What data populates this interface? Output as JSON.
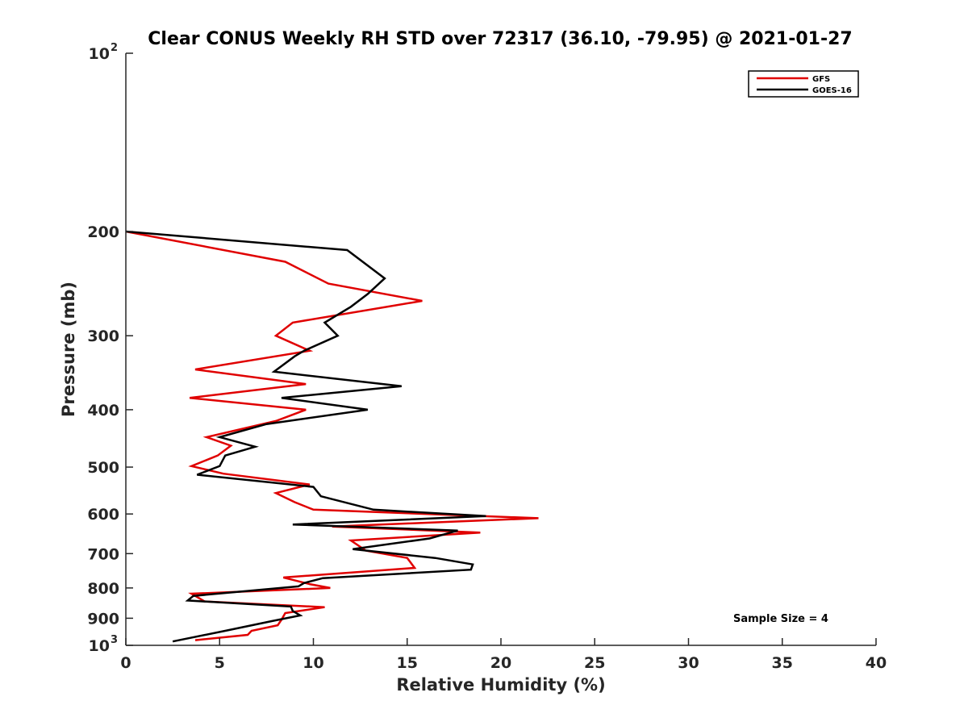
{
  "chart_data": {
    "type": "line",
    "title": "Clear CONUS Weekly RH STD over 72317 (36.10, -79.95) @ 2021-01-27",
    "xlabel": "Relative Humidity (%)",
    "ylabel": "Pressure (mb)",
    "xlim": [
      0,
      40
    ],
    "ylim": [
      100,
      1000
    ],
    "y_scale": "log",
    "y_reversed": true,
    "grid": false,
    "x_ticks": [
      0,
      5,
      10,
      15,
      20,
      25,
      30,
      35,
      40
    ],
    "y_ticks": [
      {
        "value": 100,
        "base": "10",
        "exp": "2"
      },
      {
        "value": 200,
        "label": "200"
      },
      {
        "value": 300,
        "label": "300"
      },
      {
        "value": 400,
        "label": "400"
      },
      {
        "value": 500,
        "label": "500"
      },
      {
        "value": 600,
        "label": "600"
      },
      {
        "value": 700,
        "label": "700"
      },
      {
        "value": 800,
        "label": "800"
      },
      {
        "value": 900,
        "label": "900"
      },
      {
        "value": 1000,
        "base": "10",
        "exp": "3"
      }
    ],
    "legend_position": "top-right",
    "annotation": "Sample Size = 4",
    "series": [
      {
        "name": "GFS",
        "color": "#e00000",
        "points": [
          [
            0.0,
            200
          ],
          [
            8.5,
            225
          ],
          [
            10.8,
            245
          ],
          [
            15.8,
            262
          ],
          [
            8.9,
            285
          ],
          [
            8.0,
            300
          ],
          [
            9.8,
            318
          ],
          [
            3.7,
            342
          ],
          [
            9.6,
            362
          ],
          [
            3.4,
            382
          ],
          [
            9.6,
            400
          ],
          [
            8.0,
            418
          ],
          [
            4.3,
            445
          ],
          [
            5.6,
            460
          ],
          [
            4.9,
            478
          ],
          [
            3.5,
            498
          ],
          [
            5.2,
            513
          ],
          [
            9.8,
            535
          ],
          [
            8.0,
            553
          ],
          [
            9.0,
            573
          ],
          [
            10.0,
            590
          ],
          [
            22.0,
            610
          ],
          [
            11.0,
            630
          ],
          [
            18.9,
            645
          ],
          [
            12.0,
            665
          ],
          [
            12.8,
            692
          ],
          [
            15.0,
            712
          ],
          [
            15.4,
            740
          ],
          [
            8.4,
            768
          ],
          [
            9.8,
            788
          ],
          [
            10.9,
            800
          ],
          [
            3.5,
            818
          ],
          [
            4.2,
            843
          ],
          [
            10.6,
            862
          ],
          [
            8.5,
            882
          ],
          [
            8.3,
            905
          ],
          [
            8.1,
            925
          ],
          [
            6.7,
            945
          ],
          [
            6.5,
            960
          ],
          [
            3.7,
            980
          ]
        ]
      },
      {
        "name": "GOES-16",
        "color": "#000000",
        "points": [
          [
            0.0,
            200
          ],
          [
            11.8,
            215
          ],
          [
            13.8,
            240
          ],
          [
            12.9,
            255
          ],
          [
            12.0,
            268
          ],
          [
            10.6,
            285
          ],
          [
            11.3,
            300
          ],
          [
            9.5,
            318
          ],
          [
            9.0,
            325
          ],
          [
            7.9,
            345
          ],
          [
            14.7,
            365
          ],
          [
            8.3,
            382
          ],
          [
            12.9,
            400
          ],
          [
            7.5,
            423
          ],
          [
            5.0,
            445
          ],
          [
            6.9,
            462
          ],
          [
            5.3,
            478
          ],
          [
            5.0,
            498
          ],
          [
            3.8,
            515
          ],
          [
            10.0,
            540
          ],
          [
            10.4,
            560
          ],
          [
            13.2,
            590
          ],
          [
            19.2,
            605
          ],
          [
            8.9,
            625
          ],
          [
            17.7,
            640
          ],
          [
            16.2,
            660
          ],
          [
            12.1,
            688
          ],
          [
            16.5,
            712
          ],
          [
            18.5,
            730
          ],
          [
            18.4,
            745
          ],
          [
            10.5,
            770
          ],
          [
            9.5,
            785
          ],
          [
            9.2,
            795
          ],
          [
            3.6,
            825
          ],
          [
            3.3,
            840
          ],
          [
            8.8,
            860
          ],
          [
            8.9,
            875
          ],
          [
            9.3,
            890
          ],
          [
            7.8,
            910
          ],
          [
            5.3,
            945
          ],
          [
            2.5,
            985
          ]
        ]
      }
    ]
  }
}
